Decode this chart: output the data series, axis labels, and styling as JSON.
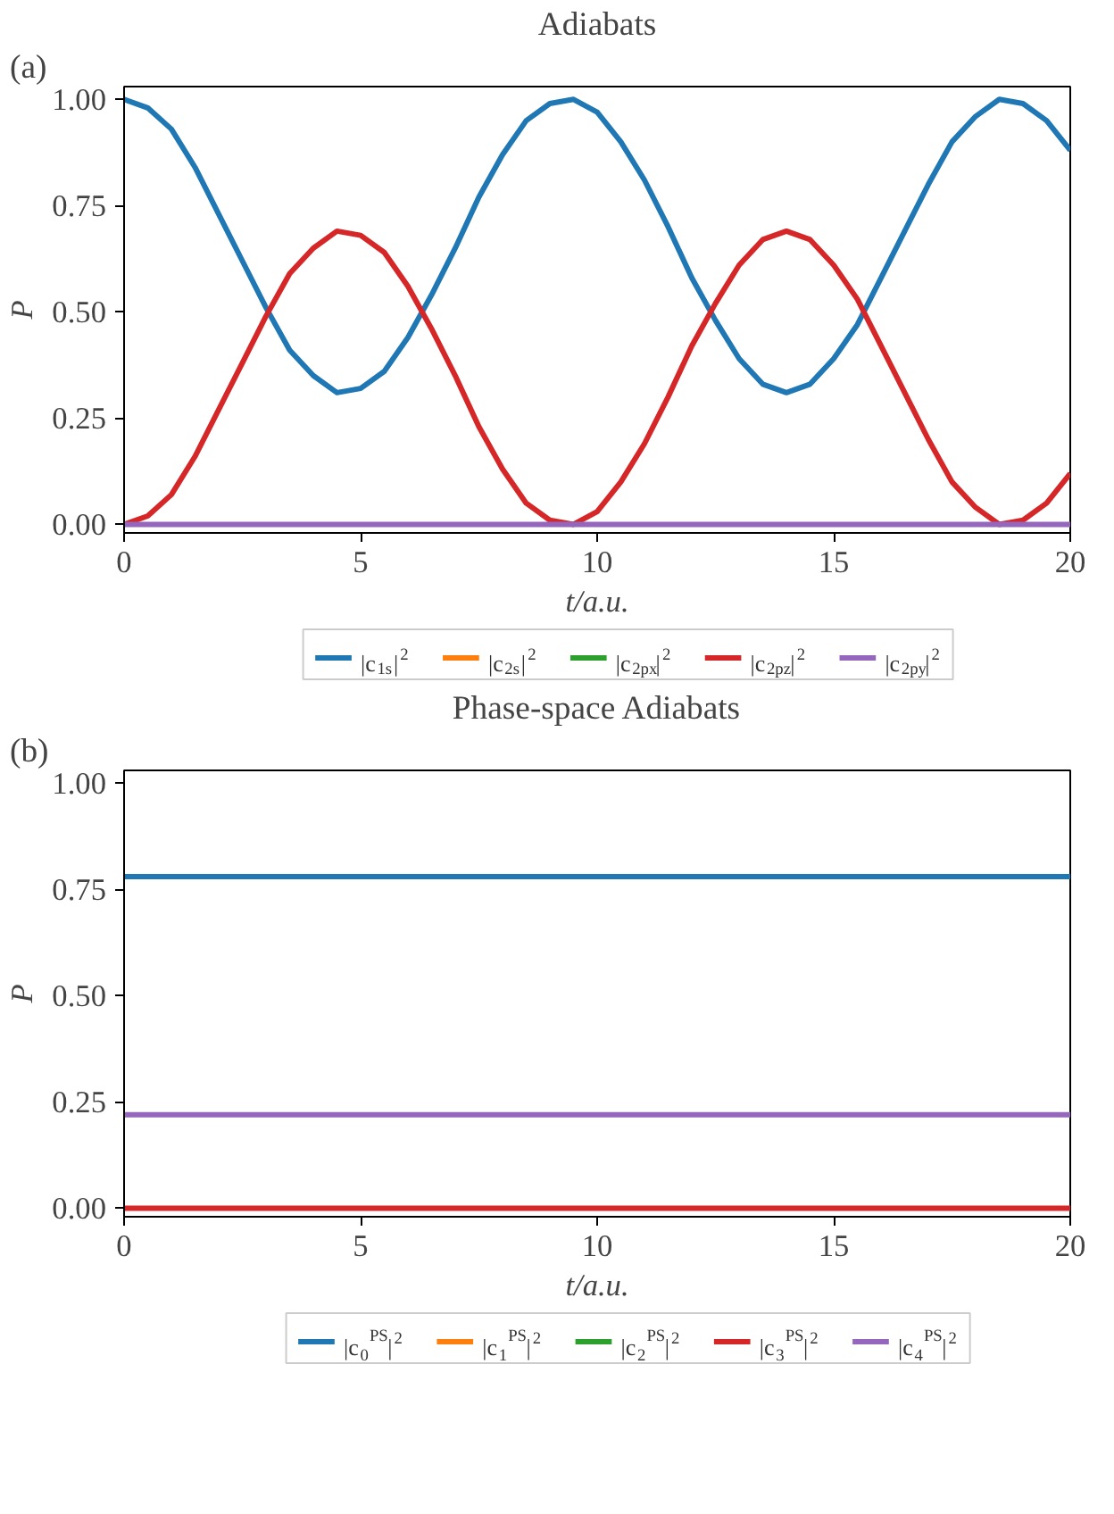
{
  "chart_data": [
    {
      "type": "line",
      "title": "Adiabats",
      "xlabel": "t/a.u.",
      "ylabel": "P",
      "annotations": [
        "(a)"
      ],
      "xlim": [
        0,
        20
      ],
      "ylim": [
        -0.02,
        1.03
      ],
      "xticks": [
        0,
        5,
        10,
        15,
        20
      ],
      "yticks": [
        {
          "value": 0,
          "label": "0.00"
        },
        {
          "value": 0.25,
          "label": "0.25"
        },
        {
          "value": 0.5,
          "label": "0.50"
        },
        {
          "value": 0.75,
          "label": "0.75"
        },
        {
          "value": 1,
          "label": "1.00"
        }
      ],
      "grid": false,
      "legend": "bottom",
      "line_style": "solid",
      "x": [
        0,
        0.5,
        1,
        1.5,
        2,
        2.5,
        3,
        3.5,
        4,
        4.5,
        5,
        5.5,
        6,
        6.5,
        7,
        7.5,
        8,
        8.5,
        9,
        9.5,
        10,
        10.5,
        11,
        11.5,
        12,
        12.5,
        13,
        13.5,
        14,
        14.5,
        15,
        15.5,
        16,
        16.5,
        17,
        17.5,
        18,
        18.5,
        19,
        19.5,
        20
      ],
      "series": [
        {
          "name": "|c$_{1s}$|$^{2}$",
          "color": "#1f77b4",
          "values": [
            1.0,
            0.98,
            0.93,
            0.84,
            0.73,
            0.62,
            0.51,
            0.41,
            0.35,
            0.31,
            0.32,
            0.36,
            0.44,
            0.54,
            0.65,
            0.77,
            0.87,
            0.95,
            0.99,
            1.0,
            0.97,
            0.9,
            0.81,
            0.7,
            0.58,
            0.48,
            0.39,
            0.33,
            0.31,
            0.33,
            0.39,
            0.47,
            0.58,
            0.69,
            0.8,
            0.9,
            0.96,
            1.0,
            0.99,
            0.95,
            0.88
          ]
        },
        {
          "name": "|c$_{2s}$|$^{2}$",
          "color": "#ff7f0e",
          "values": [
            null,
            null,
            null,
            null,
            null,
            null,
            null,
            null,
            null,
            null,
            null,
            null,
            null,
            null,
            null,
            null,
            null,
            null,
            null,
            null,
            null,
            null,
            null,
            null,
            null,
            null,
            null,
            null,
            null,
            null,
            null,
            null,
            null,
            null,
            null,
            null,
            null,
            null,
            null,
            null,
            null
          ]
        },
        {
          "name": "|c$_{2px}$|$^{2}$",
          "color": "#2ca02c",
          "values": [
            null,
            null,
            null,
            null,
            null,
            null,
            null,
            null,
            null,
            null,
            null,
            null,
            null,
            null,
            null,
            null,
            null,
            null,
            null,
            null,
            null,
            null,
            null,
            null,
            null,
            null,
            null,
            null,
            null,
            null,
            null,
            null,
            null,
            null,
            null,
            null,
            null,
            null,
            null,
            null,
            null
          ]
        },
        {
          "name": "|c$_{2pz}$|$^{2}$",
          "color": "#d62728",
          "values": [
            0,
            0.02,
            0.07,
            0.16,
            0.27,
            0.38,
            0.49,
            0.59,
            0.65,
            0.69,
            0.68,
            0.64,
            0.56,
            0.46,
            0.35,
            0.23,
            0.13,
            0.05,
            0.01,
            0,
            0.03,
            0.1,
            0.19,
            0.3,
            0.42,
            0.52,
            0.61,
            0.67,
            0.69,
            0.67,
            0.61,
            0.53,
            0.42,
            0.31,
            0.2,
            0.1,
            0.04,
            0,
            0.01,
            0.05,
            0.12
          ]
        },
        {
          "name": "|c$_{2py}$|$^{2}$",
          "color": "#9467bd",
          "x": [
            0,
            20
          ],
          "values": [
            0,
            0
          ]
        }
      ]
    },
    {
      "type": "line",
      "title": "Phase-space Adiabats",
      "xlabel": "t/a.u.",
      "ylabel": "P",
      "annotations": [
        "(b)"
      ],
      "xlim": [
        0,
        20
      ],
      "ylim": [
        -0.02,
        1.03
      ],
      "xticks": [
        0,
        5,
        10,
        15,
        20
      ],
      "yticks": [
        {
          "value": 0,
          "label": "0.00"
        },
        {
          "value": 0.25,
          "label": "0.25"
        },
        {
          "value": 0.5,
          "label": "0.50"
        },
        {
          "value": 0.75,
          "label": "0.75"
        },
        {
          "value": 1,
          "label": "1.00"
        }
      ],
      "grid": false,
      "legend": "bottom",
      "line_style": "solid",
      "x": [
        0,
        20
      ],
      "series": [
        {
          "name": "|c$_{0}$$^{PS}$|$^{2}$",
          "color": "#1f77b4",
          "values": [
            0.78,
            0.78
          ]
        },
        {
          "name": "|c$_{1}$$^{PS}$|$^{2}$",
          "color": "#ff7f0e",
          "values": [
            null,
            null
          ]
        },
        {
          "name": "|c$_{2}$$^{PS}$|$^{2}$",
          "color": "#2ca02c",
          "values": [
            null,
            null
          ]
        },
        {
          "name": "|c$_{3}$$^{PS}$|$^{2}$",
          "color": "#d62728",
          "values": [
            0,
            0
          ]
        },
        {
          "name": "|c$_{4}$$^{PS}$|$^{2}$",
          "color": "#9467bd",
          "values": [
            0.22,
            0.22
          ]
        }
      ]
    }
  ]
}
